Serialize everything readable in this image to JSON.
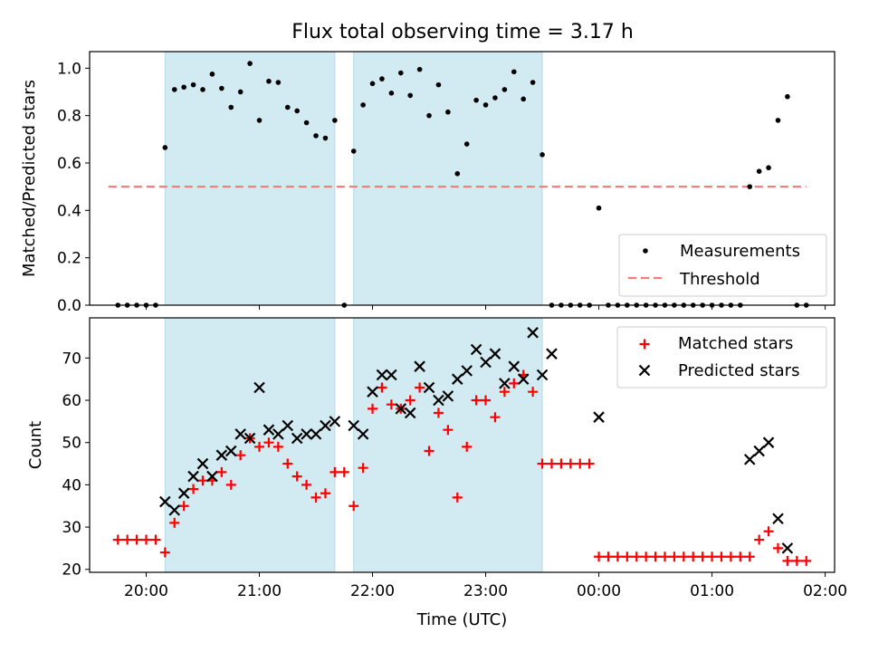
{
  "title": "Flux total observing time = 3.17 h",
  "colors": {
    "shade": "#add8e6",
    "measurements": "#000000",
    "threshold": "#f08080",
    "matched": "#ff0000",
    "predicted": "#000000"
  },
  "chart_data": [
    {
      "type": "scatter",
      "ylabel": "Matched/Predicted stars",
      "xlabel": "",
      "xlim": [
        "19:30",
        "02:05"
      ],
      "ylim": [
        0,
        1.07
      ],
      "yticks": [
        "0.0",
        "0.2",
        "0.4",
        "0.6",
        "0.8",
        "1.0"
      ],
      "grid": false,
      "legend_position": "lower right",
      "shaded_intervals": [
        [
          "20:10",
          "21:40"
        ],
        [
          "21:50",
          "23:30"
        ]
      ],
      "series": [
        {
          "name": "Measurements",
          "points": [
            [
              "19:45",
              0.0
            ],
            [
              "19:50",
              0.0
            ],
            [
              "19:55",
              0.0
            ],
            [
              "20:00",
              0.0
            ],
            [
              "20:05",
              0.0
            ],
            [
              "20:10",
              0.665
            ],
            [
              "20:15",
              0.91
            ],
            [
              "20:20",
              0.92
            ],
            [
              "20:25",
              0.93
            ],
            [
              "20:30",
              0.91
            ],
            [
              "20:35",
              0.975
            ],
            [
              "20:40",
              0.915
            ],
            [
              "20:45",
              0.835
            ],
            [
              "20:50",
              0.9
            ],
            [
              "20:55",
              1.02
            ],
            [
              "21:00",
              0.78
            ],
            [
              "21:05",
              0.945
            ],
            [
              "21:10",
              0.94
            ],
            [
              "21:15",
              0.835
            ],
            [
              "21:20",
              0.82
            ],
            [
              "21:25",
              0.77
            ],
            [
              "21:30",
              0.715
            ],
            [
              "21:35",
              0.705
            ],
            [
              "21:40",
              0.78
            ],
            [
              "21:45",
              0.0
            ],
            [
              "21:50",
              0.65
            ],
            [
              "21:55",
              0.845
            ],
            [
              "22:00",
              0.935
            ],
            [
              "22:05",
              0.955
            ],
            [
              "22:10",
              0.895
            ],
            [
              "22:15",
              0.98
            ],
            [
              "22:20",
              0.885
            ],
            [
              "22:25",
              0.995
            ],
            [
              "22:30",
              0.8
            ],
            [
              "22:35",
              0.93
            ],
            [
              "22:40",
              0.815
            ],
            [
              "22:45",
              0.555
            ],
            [
              "22:50",
              0.68
            ],
            [
              "22:55",
              0.865
            ],
            [
              "23:00",
              0.845
            ],
            [
              "23:05",
              0.875
            ],
            [
              "23:10",
              0.91
            ],
            [
              "23:15",
              0.985
            ],
            [
              "23:20",
              0.87
            ],
            [
              "23:25",
              0.94
            ],
            [
              "23:30",
              0.635
            ],
            [
              "23:35",
              0.0
            ],
            [
              "23:40",
              0.0
            ],
            [
              "23:45",
              0.0
            ],
            [
              "23:50",
              0.0
            ],
            [
              "23:55",
              0.0
            ],
            [
              "00:00",
              0.41
            ],
            [
              "00:05",
              0.0
            ],
            [
              "00:10",
              0.0
            ],
            [
              "00:15",
              0.0
            ],
            [
              "00:20",
              0.0
            ],
            [
              "00:25",
              0.0
            ],
            [
              "00:30",
              0.0
            ],
            [
              "00:35",
              0.0
            ],
            [
              "00:40",
              0.0
            ],
            [
              "00:45",
              0.0
            ],
            [
              "00:50",
              0.0
            ],
            [
              "00:55",
              0.0
            ],
            [
              "01:00",
              0.0
            ],
            [
              "01:05",
              0.0
            ],
            [
              "01:10",
              0.0
            ],
            [
              "01:15",
              0.0
            ],
            [
              "01:20",
              0.5
            ],
            [
              "01:25",
              0.565
            ],
            [
              "01:30",
              0.58
            ],
            [
              "01:35",
              0.78
            ],
            [
              "01:40",
              0.88
            ],
            [
              "01:45",
              0.0
            ],
            [
              "01:50",
              0.0
            ]
          ]
        },
        {
          "name": "Threshold",
          "points": [
            [
              "19:40",
              0.5
            ],
            [
              "01:50",
              0.5
            ]
          ]
        }
      ]
    },
    {
      "type": "scatter",
      "ylabel": "Count",
      "xlabel": "Time (UTC)",
      "xlim": [
        "19:30",
        "02:05"
      ],
      "ylim": [
        19.3,
        79.5
      ],
      "yticks": [
        "20",
        "30",
        "40",
        "50",
        "60",
        "70"
      ],
      "xticks": [
        "20:00",
        "21:00",
        "22:00",
        "23:00",
        "00:00",
        "01:00",
        "02:00"
      ],
      "grid": false,
      "legend_position": "upper right",
      "shaded_intervals": [
        [
          "20:10",
          "21:40"
        ],
        [
          "21:50",
          "23:30"
        ]
      ],
      "series": [
        {
          "name": "Matched stars",
          "points": [
            [
              "19:45",
              27
            ],
            [
              "19:50",
              27
            ],
            [
              "19:55",
              27
            ],
            [
              "20:00",
              27
            ],
            [
              "20:05",
              27
            ],
            [
              "20:10",
              24
            ],
            [
              "20:15",
              31
            ],
            [
              "20:20",
              35
            ],
            [
              "20:25",
              39
            ],
            [
              "20:30",
              41
            ],
            [
              "20:35",
              41
            ],
            [
              "20:40",
              43
            ],
            [
              "20:45",
              40
            ],
            [
              "20:50",
              47
            ],
            [
              "20:55",
              51
            ],
            [
              "21:00",
              49
            ],
            [
              "21:05",
              50
            ],
            [
              "21:10",
              49
            ],
            [
              "21:15",
              45
            ],
            [
              "21:20",
              42
            ],
            [
              "21:25",
              40
            ],
            [
              "21:30",
              37
            ],
            [
              "21:35",
              38
            ],
            [
              "21:40",
              43
            ],
            [
              "21:45",
              43
            ],
            [
              "21:50",
              35
            ],
            [
              "21:55",
              44
            ],
            [
              "22:00",
              58
            ],
            [
              "22:05",
              63
            ],
            [
              "22:10",
              59
            ],
            [
              "22:15",
              58
            ],
            [
              "22:20",
              60
            ],
            [
              "22:25",
              63
            ],
            [
              "22:30",
              48
            ],
            [
              "22:35",
              57
            ],
            [
              "22:40",
              53
            ],
            [
              "22:45",
              37
            ],
            [
              "22:50",
              49
            ],
            [
              "22:55",
              60
            ],
            [
              "23:00",
              60
            ],
            [
              "23:05",
              56
            ],
            [
              "23:10",
              62
            ],
            [
              "23:15",
              64
            ],
            [
              "23:20",
              66
            ],
            [
              "23:25",
              62
            ],
            [
              "23:30",
              45
            ],
            [
              "23:35",
              45
            ],
            [
              "23:40",
              45
            ],
            [
              "23:45",
              45
            ],
            [
              "23:50",
              45
            ],
            [
              "23:55",
              45
            ],
            [
              "00:00",
              23
            ],
            [
              "00:05",
              23
            ],
            [
              "00:10",
              23
            ],
            [
              "00:15",
              23
            ],
            [
              "00:20",
              23
            ],
            [
              "00:25",
              23
            ],
            [
              "00:30",
              23
            ],
            [
              "00:35",
              23
            ],
            [
              "00:40",
              23
            ],
            [
              "00:45",
              23
            ],
            [
              "00:50",
              23
            ],
            [
              "00:55",
              23
            ],
            [
              "01:00",
              23
            ],
            [
              "01:05",
              23
            ],
            [
              "01:10",
              23
            ],
            [
              "01:15",
              23
            ],
            [
              "01:20",
              23
            ],
            [
              "01:25",
              27
            ],
            [
              "01:30",
              29
            ],
            [
              "01:35",
              25
            ],
            [
              "01:40",
              22
            ],
            [
              "01:45",
              22
            ],
            [
              "01:50",
              22
            ]
          ]
        },
        {
          "name": "Predicted stars",
          "points": [
            [
              "20:10",
              36
            ],
            [
              "20:15",
              34
            ],
            [
              "20:20",
              38
            ],
            [
              "20:25",
              42
            ],
            [
              "20:30",
              45
            ],
            [
              "20:35",
              42
            ],
            [
              "20:40",
              47
            ],
            [
              "20:45",
              48
            ],
            [
              "20:50",
              52
            ],
            [
              "20:55",
              51
            ],
            [
              "21:00",
              63
            ],
            [
              "21:05",
              53
            ],
            [
              "21:10",
              52
            ],
            [
              "21:15",
              54
            ],
            [
              "21:20",
              51
            ],
            [
              "21:25",
              52
            ],
            [
              "21:30",
              52
            ],
            [
              "21:35",
              54
            ],
            [
              "21:40",
              55
            ],
            [
              "21:50",
              54
            ],
            [
              "21:55",
              52
            ],
            [
              "22:00",
              62
            ],
            [
              "22:05",
              66
            ],
            [
              "22:10",
              66
            ],
            [
              "22:15",
              58
            ],
            [
              "22:20",
              57
            ],
            [
              "22:25",
              68
            ],
            [
              "22:30",
              63
            ],
            [
              "22:35",
              60
            ],
            [
              "22:40",
              61
            ],
            [
              "22:45",
              65
            ],
            [
              "22:50",
              67
            ],
            [
              "22:55",
              72
            ],
            [
              "23:00",
              69
            ],
            [
              "23:05",
              71
            ],
            [
              "23:10",
              64
            ],
            [
              "23:15",
              68
            ],
            [
              "23:20",
              65
            ],
            [
              "23:25",
              76
            ],
            [
              "23:30",
              66
            ],
            [
              "23:35",
              71
            ],
            [
              "00:00",
              56
            ],
            [
              "01:20",
              46
            ],
            [
              "01:25",
              48
            ],
            [
              "01:30",
              50
            ],
            [
              "01:35",
              32
            ],
            [
              "01:40",
              25
            ]
          ]
        }
      ]
    }
  ]
}
